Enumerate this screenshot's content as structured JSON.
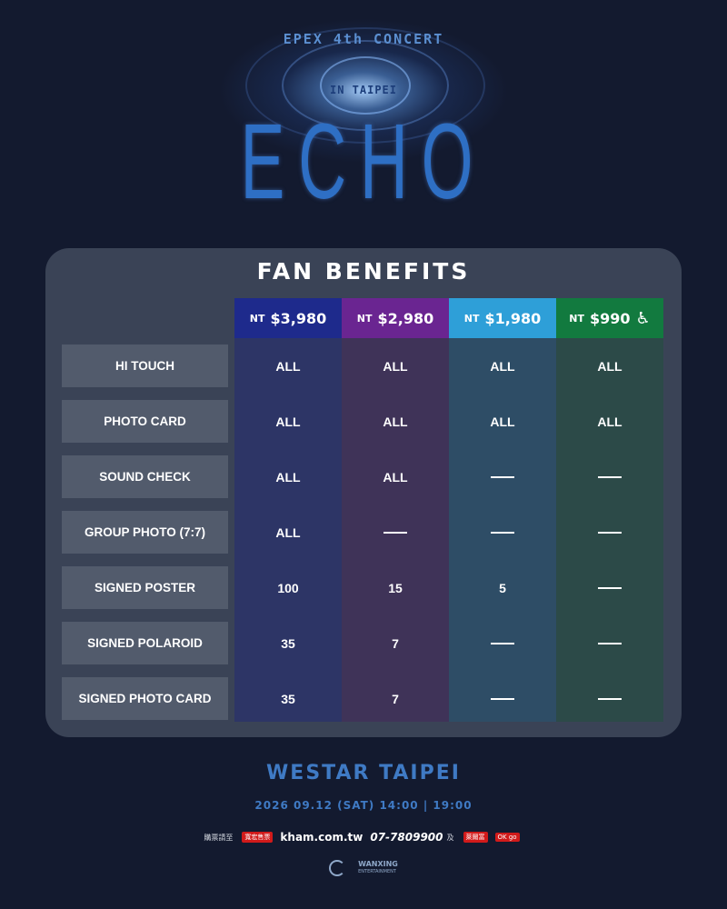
{
  "header": {
    "subtitle": "EPEX 4th CONCERT",
    "location": "IN TAIPEI",
    "title": "ECHO"
  },
  "benefits": {
    "title": "FAN BENEFITS",
    "tiers": [
      {
        "currency": "NT",
        "price": "$3,980",
        "color": "#1e2a8c",
        "column_color": "#2d3566"
      },
      {
        "currency": "NT",
        "price": "$2,980",
        "color": "#6a2591",
        "column_color": "#3f3358"
      },
      {
        "currency": "NT",
        "price": "$1,980",
        "color": "#2e9fd8",
        "column_color": "#2e4d66"
      },
      {
        "currency": "NT",
        "price": "$990",
        "color": "#127a3f",
        "column_color": "#2c4a48",
        "icon": "wheelchair-icon"
      }
    ],
    "rows": [
      {
        "label": "HI TOUCH",
        "values": [
          "ALL",
          "ALL",
          "ALL",
          "ALL"
        ]
      },
      {
        "label": "PHOTO CARD",
        "values": [
          "ALL",
          "ALL",
          "ALL",
          "ALL"
        ]
      },
      {
        "label": "SOUND CHECK",
        "values": [
          "ALL",
          "ALL",
          "",
          ""
        ]
      },
      {
        "label": "GROUP PHOTO (7:7)",
        "values": [
          "ALL",
          "",
          "",
          ""
        ]
      },
      {
        "label": "SIGNED POSTER",
        "values": [
          "100",
          "15",
          "5",
          ""
        ]
      },
      {
        "label": "SIGNED POLAROID",
        "values": [
          "35",
          "7",
          "",
          ""
        ]
      },
      {
        "label": "SIGNED PHOTO CARD",
        "values": [
          "35",
          "7",
          "",
          ""
        ]
      }
    ]
  },
  "footer": {
    "venue": "WESTAR TAIPEI",
    "date": "2026 09.12 (SAT) 14:00 | 19:00",
    "ticket_prefix": "購票請至",
    "ticket_brand": "寬宏售票",
    "ticket_site": "kham.com.tw",
    "ticket_phone": "07-7809900",
    "ticket_and": "及",
    "ticket_brand_2": "萊爾富",
    "ticket_brand_3": "OK go",
    "org_logo": "WANXING",
    "org_logo_sub": "ENTERTAINMENT"
  }
}
